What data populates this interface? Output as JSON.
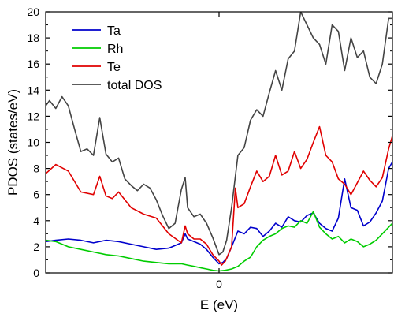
{
  "chart_data": {
    "type": "line",
    "xlabel": "E (eV)",
    "ylabel": "PDOS (states/eV)",
    "x_tick_labels": [
      {
        "x": 0,
        "label": "0"
      }
    ],
    "xlim": [
      -1.38,
      1.38
    ],
    "ylim": [
      0,
      20
    ],
    "y_ticks": [
      0,
      2,
      4,
      6,
      8,
      10,
      12,
      14,
      16,
      18,
      20
    ],
    "grid": false,
    "legend_position": "top-left",
    "series": [
      {
        "name": "Ta",
        "color": "#0000cc",
        "x": [
          -1.38,
          -1.3,
          -1.2,
          -1.1,
          -1.0,
          -0.9,
          -0.8,
          -0.7,
          -0.6,
          -0.5,
          -0.4,
          -0.3,
          -0.27,
          -0.25,
          -0.2,
          -0.15,
          -0.1,
          -0.05,
          -0.02,
          0.0,
          0.03,
          0.06,
          0.1,
          0.15,
          0.2,
          0.25,
          0.3,
          0.35,
          0.4,
          0.45,
          0.5,
          0.55,
          0.6,
          0.65,
          0.7,
          0.75,
          0.8,
          0.85,
          0.9,
          0.95,
          1.0,
          1.05,
          1.1,
          1.15,
          1.2,
          1.25,
          1.3,
          1.35,
          1.38
        ],
        "y": [
          2.4,
          2.5,
          2.6,
          2.5,
          2.3,
          2.5,
          2.4,
          2.2,
          2.0,
          1.8,
          1.9,
          2.3,
          3.0,
          2.6,
          2.4,
          2.2,
          1.8,
          1.2,
          0.9,
          0.7,
          0.8,
          1.1,
          2.0,
          3.2,
          3.0,
          3.5,
          3.4,
          2.8,
          3.2,
          3.8,
          3.5,
          4.3,
          4.0,
          3.9,
          4.4,
          4.6,
          3.8,
          3.4,
          3.2,
          4.2,
          7.2,
          5.0,
          4.8,
          3.6,
          3.9,
          4.6,
          5.5,
          8.0,
          8.5
        ]
      },
      {
        "name": "Rh",
        "color": "#00cc00",
        "x": [
          -1.38,
          -1.3,
          -1.2,
          -1.1,
          -1.0,
          -0.9,
          -0.8,
          -0.7,
          -0.6,
          -0.5,
          -0.4,
          -0.3,
          -0.25,
          -0.2,
          -0.15,
          -0.1,
          -0.05,
          0.0,
          0.05,
          0.1,
          0.15,
          0.2,
          0.25,
          0.3,
          0.35,
          0.4,
          0.45,
          0.5,
          0.55,
          0.6,
          0.65,
          0.7,
          0.75,
          0.8,
          0.85,
          0.9,
          0.95,
          1.0,
          1.05,
          1.1,
          1.15,
          1.2,
          1.25,
          1.3,
          1.35,
          1.38
        ],
        "y": [
          2.5,
          2.4,
          2.0,
          1.8,
          1.6,
          1.4,
          1.3,
          1.1,
          0.9,
          0.8,
          0.7,
          0.7,
          0.6,
          0.5,
          0.4,
          0.3,
          0.2,
          0.15,
          0.2,
          0.3,
          0.5,
          0.9,
          1.2,
          2.0,
          2.5,
          2.8,
          3.0,
          3.4,
          3.6,
          3.5,
          4.0,
          3.8,
          4.7,
          3.5,
          3.0,
          2.6,
          2.8,
          2.3,
          2.6,
          2.4,
          2.0,
          2.2,
          2.5,
          3.0,
          3.5,
          3.8
        ]
      },
      {
        "name": "Te",
        "color": "#e00000",
        "x": [
          -1.38,
          -1.3,
          -1.2,
          -1.1,
          -1.0,
          -0.95,
          -0.9,
          -0.85,
          -0.8,
          -0.7,
          -0.6,
          -0.5,
          -0.4,
          -0.3,
          -0.27,
          -0.25,
          -0.2,
          -0.15,
          -0.1,
          -0.05,
          0.0,
          0.02,
          0.05,
          0.1,
          0.13,
          0.15,
          0.2,
          0.25,
          0.3,
          0.35,
          0.4,
          0.45,
          0.5,
          0.55,
          0.6,
          0.65,
          0.7,
          0.75,
          0.8,
          0.85,
          0.9,
          0.95,
          1.0,
          1.05,
          1.1,
          1.15,
          1.2,
          1.25,
          1.3,
          1.35,
          1.38
        ],
        "y": [
          7.6,
          8.3,
          7.8,
          6.2,
          6.0,
          7.4,
          5.9,
          5.7,
          6.2,
          5.0,
          4.5,
          4.2,
          3.0,
          2.3,
          3.6,
          3.0,
          2.6,
          2.6,
          2.2,
          1.4,
          0.9,
          0.6,
          0.9,
          2.0,
          6.5,
          5.0,
          5.3,
          6.6,
          7.8,
          7.0,
          7.4,
          9.0,
          7.5,
          7.8,
          9.3,
          8.0,
          8.7,
          10.0,
          11.2,
          9.0,
          8.5,
          7.2,
          6.8,
          6.0,
          6.9,
          7.8,
          7.1,
          6.6,
          7.3,
          9.5,
          10.5
        ]
      },
      {
        "name": "total DOS",
        "color": "#444444",
        "x": [
          -1.38,
          -1.35,
          -1.3,
          -1.25,
          -1.2,
          -1.15,
          -1.1,
          -1.05,
          -1.0,
          -0.95,
          -0.9,
          -0.85,
          -0.8,
          -0.75,
          -0.7,
          -0.65,
          -0.6,
          -0.55,
          -0.5,
          -0.45,
          -0.4,
          -0.35,
          -0.3,
          -0.27,
          -0.25,
          -0.2,
          -0.15,
          -0.1,
          -0.05,
          0.0,
          0.03,
          0.06,
          0.1,
          0.13,
          0.15,
          0.2,
          0.25,
          0.3,
          0.35,
          0.4,
          0.45,
          0.5,
          0.55,
          0.6,
          0.65,
          0.7,
          0.75,
          0.8,
          0.85,
          0.9,
          0.95,
          1.0,
          1.05,
          1.1,
          1.15,
          1.2,
          1.25,
          1.3,
          1.35,
          1.38
        ],
        "y": [
          12.8,
          13.2,
          12.6,
          13.5,
          12.8,
          11.0,
          9.3,
          9.5,
          9.0,
          11.9,
          9.1,
          8.5,
          8.8,
          7.2,
          6.7,
          6.3,
          6.8,
          6.5,
          5.6,
          4.4,
          3.4,
          3.8,
          6.4,
          7.3,
          5.0,
          4.3,
          4.5,
          3.8,
          2.7,
          1.4,
          1.6,
          2.5,
          5.0,
          7.4,
          9.0,
          9.6,
          11.7,
          12.5,
          12.0,
          13.8,
          15.5,
          14.0,
          16.4,
          17.0,
          20.0,
          19.0,
          18.0,
          17.5,
          16.0,
          19.0,
          18.5,
          15.5,
          18.0,
          16.5,
          17.0,
          15.0,
          14.5,
          16.0,
          19.5,
          19.5
        ]
      }
    ]
  }
}
